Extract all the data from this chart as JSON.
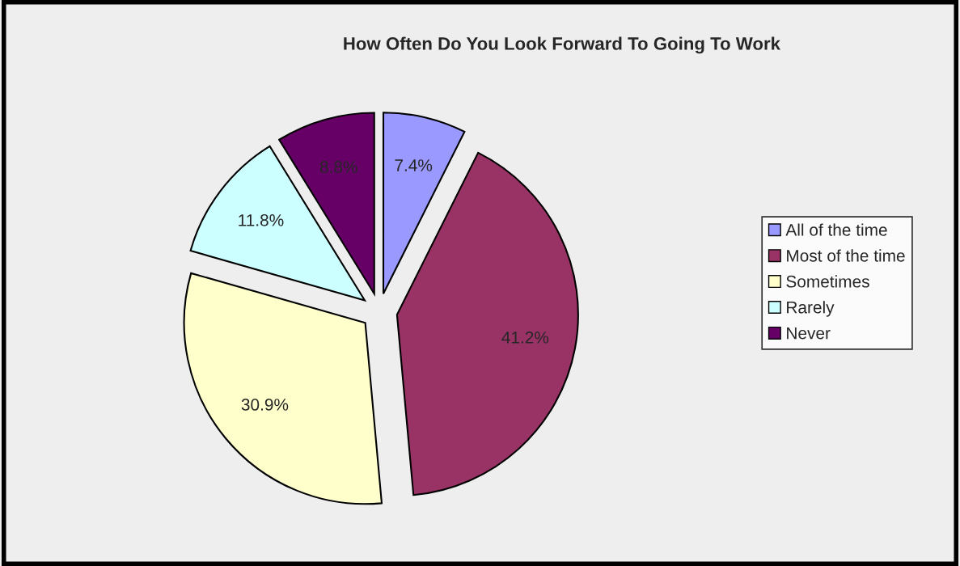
{
  "chart_data": {
    "type": "pie",
    "title": "How Often Do You Look Forward To Going To Work",
    "categories": [
      "All of the time",
      "Most of the time",
      "Sometimes",
      "Rarely",
      "Never"
    ],
    "values": [
      7.4,
      41.2,
      30.9,
      11.8,
      8.8
    ],
    "colors": [
      "#9999ff",
      "#993366",
      "#ffffcc",
      "#ccffff",
      "#660066"
    ],
    "value_labels": [
      "7.4%",
      "41.2%",
      "30.9%",
      "11.8%",
      "8.8%"
    ],
    "legend": "right"
  }
}
